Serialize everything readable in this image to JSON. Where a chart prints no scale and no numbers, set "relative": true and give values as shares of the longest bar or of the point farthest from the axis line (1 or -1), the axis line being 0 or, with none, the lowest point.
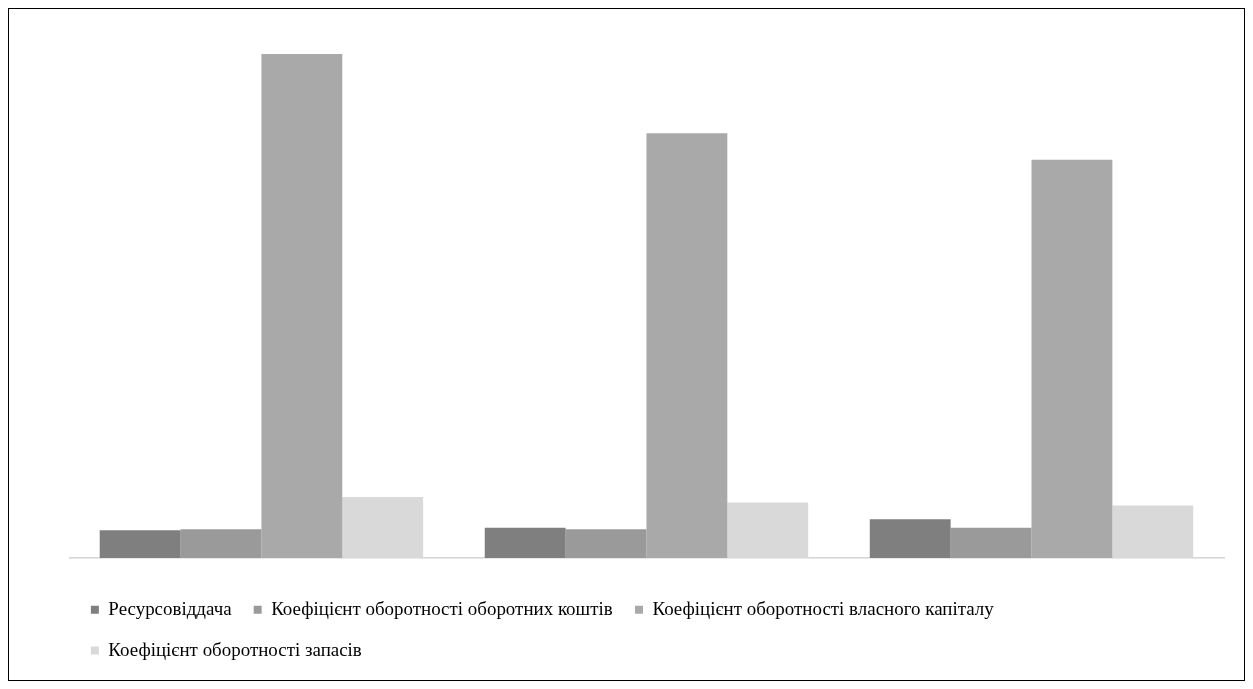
{
  "chart_data": {
    "type": "bar",
    "relative": true,
    "categories": [
      null,
      null,
      null
    ],
    "legend": "bottom",
    "grid": false,
    "series": [
      {
        "name": "Ресурсовіддача",
        "color": "#7f7f7f",
        "values": [
          0.055,
          0.06,
          0.077
        ]
      },
      {
        "name": "Коефіцієнт оборотності оборотних коштів",
        "color": "#9a9a9a",
        "values": [
          0.057,
          0.057,
          0.06
        ]
      },
      {
        "name": "Коефіцієнт оборотності власного капіталу",
        "color": "#a9a9a9",
        "values": [
          1,
          0.843,
          0.79
        ]
      },
      {
        "name": "Коефіцієнт оборотності запасів",
        "color": "#d9d9d9",
        "values": [
          0.121,
          0.11,
          0.104
        ]
      }
    ]
  }
}
